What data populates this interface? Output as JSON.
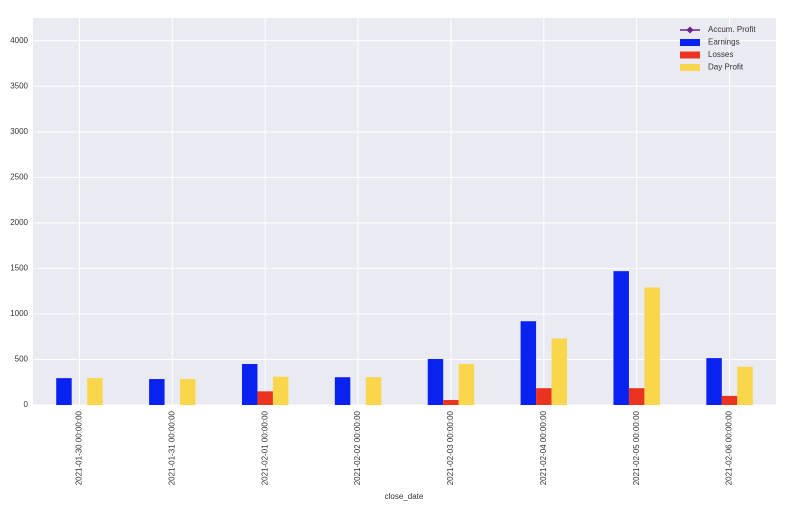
{
  "chart_data": {
    "type": "bar",
    "xlabel": "close_date",
    "categories": [
      "2021-01-30 00:00:00",
      "2021-01-31 00:00:00",
      "2021-02-01 00:00:00",
      "2021-02-02 00:00:00",
      "2021-02-03 00:00:00",
      "2021-02-04 00:00:00",
      "2021-02-05 00:00:00",
      "2021-02-06 00:00:00"
    ],
    "series": [
      {
        "name": "Accum. Profit",
        "type": "line",
        "color": "#6b1f8c",
        "values": [
          null,
          null,
          null,
          null,
          null,
          null,
          null,
          null
        ]
      },
      {
        "name": "Earnings",
        "type": "bar",
        "color": "#0a22f0",
        "values": [
          295,
          285,
          450,
          305,
          505,
          920,
          1470,
          515
        ]
      },
      {
        "name": "Losses",
        "type": "bar",
        "color": "#ea3420",
        "values": [
          0,
          0,
          150,
          0,
          55,
          185,
          185,
          100
        ]
      },
      {
        "name": "Day Profit",
        "type": "bar",
        "color": "#f9d64c",
        "values": [
          295,
          285,
          310,
          305,
          450,
          730,
          1290,
          420
        ]
      }
    ],
    "ylim": [
      0,
      4250
    ],
    "yticks": [
      0,
      500,
      1000,
      1500,
      2000,
      2500,
      3000,
      3500,
      4000
    ],
    "grid": true,
    "legend": "upper-right"
  }
}
